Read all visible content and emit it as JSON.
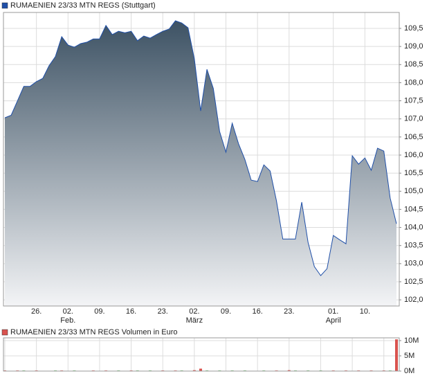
{
  "chart_data": [
    {
      "type": "area",
      "series": [
        {
          "name": "RUMAENIEN 23/33 MTN REGS (Stuttgart)",
          "color": "#1f4fa8",
          "values": [
            107.03,
            107.1,
            107.5,
            107.9,
            107.9,
            108.03,
            108.12,
            108.47,
            108.72,
            109.27,
            109.04,
            108.98,
            109.08,
            109.12,
            109.21,
            109.21,
            109.58,
            109.33,
            109.42,
            109.38,
            109.42,
            109.16,
            109.29,
            109.23,
            109.33,
            109.42,
            109.48,
            109.71,
            109.65,
            109.52,
            108.66,
            107.22,
            108.37,
            107.84,
            106.65,
            106.08,
            106.88,
            106.31,
            105.88,
            105.31,
            105.27,
            105.73,
            105.56,
            104.74,
            103.68,
            103.68,
            103.68,
            104.7,
            103.59,
            102.92,
            102.67,
            102.86,
            103.78,
            103.66,
            103.55,
            105.98,
            105.75,
            105.92,
            105.58,
            106.19,
            106.11,
            104.81,
            104.1
          ]
        }
      ],
      "categories": [
        null,
        null,
        null,
        null,
        null,
        "26.",
        null,
        null,
        null,
        null,
        "02.",
        null,
        null,
        null,
        null,
        "09.",
        null,
        null,
        null,
        null,
        "16.",
        null,
        null,
        null,
        null,
        "23.",
        null,
        null,
        null,
        null,
        "02.",
        null,
        null,
        null,
        null,
        "09.",
        null,
        null,
        null,
        null,
        "16.",
        null,
        null,
        null,
        null,
        "23.",
        null,
        null,
        null,
        null,
        null,
        null,
        "01.",
        null,
        null,
        null,
        null,
        "10.",
        null,
        null,
        null,
        null,
        null
      ],
      "month_labels": [
        null,
        null,
        null,
        null,
        null,
        null,
        null,
        null,
        null,
        null,
        "Feb.",
        null,
        null,
        null,
        null,
        null,
        null,
        null,
        null,
        null,
        null,
        null,
        null,
        null,
        null,
        null,
        null,
        null,
        null,
        null,
        "März",
        null,
        null,
        null,
        null,
        null,
        null,
        null,
        null,
        null,
        null,
        null,
        null,
        null,
        null,
        null,
        null,
        null,
        null,
        null,
        null,
        null,
        "April",
        null,
        null,
        null,
        null,
        null,
        null,
        null,
        null,
        null,
        null
      ],
      "ylim": [
        101.83,
        109.94
      ],
      "yticks": [
        {
          "value": 102.0,
          "label": "102,0"
        },
        {
          "value": 102.5,
          "label": "102,5"
        },
        {
          "value": 103.0,
          "label": "103,0"
        },
        {
          "value": 103.5,
          "label": "103,5"
        },
        {
          "value": 104.0,
          "label": "104,0"
        },
        {
          "value": 104.5,
          "label": "104,5"
        },
        {
          "value": 105.0,
          "label": "105,0"
        },
        {
          "value": 105.5,
          "label": "105,5"
        },
        {
          "value": 106.0,
          "label": "106,0"
        },
        {
          "value": 106.5,
          "label": "106,5"
        },
        {
          "value": 107.0,
          "label": "107,0"
        },
        {
          "value": 107.5,
          "label": "107,5"
        },
        {
          "value": 108.0,
          "label": "108,0"
        },
        {
          "value": 108.5,
          "label": "108,5"
        },
        {
          "value": 109.0,
          "label": "109,0"
        },
        {
          "value": 109.5,
          "label": "109,5"
        }
      ],
      "grid": true,
      "fill_top": "#3d5264",
      "fill_bottom": "#f3f4f6"
    },
    {
      "type": "bar",
      "series": [
        {
          "name": "RUMAENIEN 23/33 MTN REGS Volumen in Euro",
          "color": "#d9534f",
          "values": [
            0.2,
            0.1,
            0.2,
            0.2,
            0.1,
            0.2,
            0.1,
            0.1,
            0.2,
            0.2,
            0.1,
            0.2,
            0.1,
            0.1,
            0.2,
            0.1,
            0.2,
            0.1,
            0.2,
            0.1,
            0.2,
            0.2,
            0.1,
            0.2,
            0.1,
            0.2,
            0.1,
            0.2,
            0.2,
            0.1,
            0.3,
            0.8,
            0.2,
            0.1,
            0.2,
            0.1,
            0.2,
            0.1,
            0.2,
            0.1,
            0.1,
            0.2,
            0.1,
            0.2,
            0.1,
            0.3,
            0.2,
            0.1,
            0.2,
            0.1,
            0.2,
            0.1,
            0.2,
            0.1,
            0.2,
            0.1,
            0.2,
            0.1,
            0.2,
            0.1,
            0.2,
            0.2,
            10.4
          ],
          "bar_colors": [
            "#d9534f",
            "#5cb85c",
            "#d9534f",
            "#5cb85c",
            "#5cb85c",
            "#d9534f",
            "#5cb85c",
            "#d9534f",
            "#5cb85c",
            "#d9534f",
            "#d9534f",
            "#5cb85c",
            "#d9534f",
            "#5cb85c",
            "#d9534f",
            "#5cb85c",
            "#d9534f",
            "#5cb85c",
            "#5cb85c",
            "#d9534f",
            "#d9534f",
            "#5cb85c",
            "#d9534f",
            "#5cb85c",
            "#d9534f",
            "#d9534f",
            "#5cb85c",
            "#d9534f",
            "#5cb85c",
            "#d9534f",
            "#d9534f",
            "#d9534f",
            "#5cb85c",
            "#d9534f",
            "#5cb85c",
            "#d9534f",
            "#5cb85c",
            "#d9534f",
            "#5cb85c",
            "#d9534f",
            "#d9534f",
            "#5cb85c",
            "#d9534f",
            "#d9534f",
            "#5cb85c",
            "#d9534f",
            "#5cb85c",
            "#d9534f",
            "#5cb85c",
            "#d9534f",
            "#5cb85c",
            "#d9534f",
            "#d9534f",
            "#5cb85c",
            "#d9534f",
            "#5cb85c",
            "#d9534f",
            "#5cb85c",
            "#d9534f",
            "#5cb85c",
            "#d9534f",
            "#5cb85c",
            "#d9534f"
          ]
        }
      ],
      "ylim": [
        0,
        10.9
      ],
      "yticks": [
        {
          "value": 0,
          "label": "0M"
        },
        {
          "value": 5,
          "label": "5M"
        },
        {
          "value": 10,
          "label": "10M"
        }
      ],
      "grid": true
    }
  ]
}
